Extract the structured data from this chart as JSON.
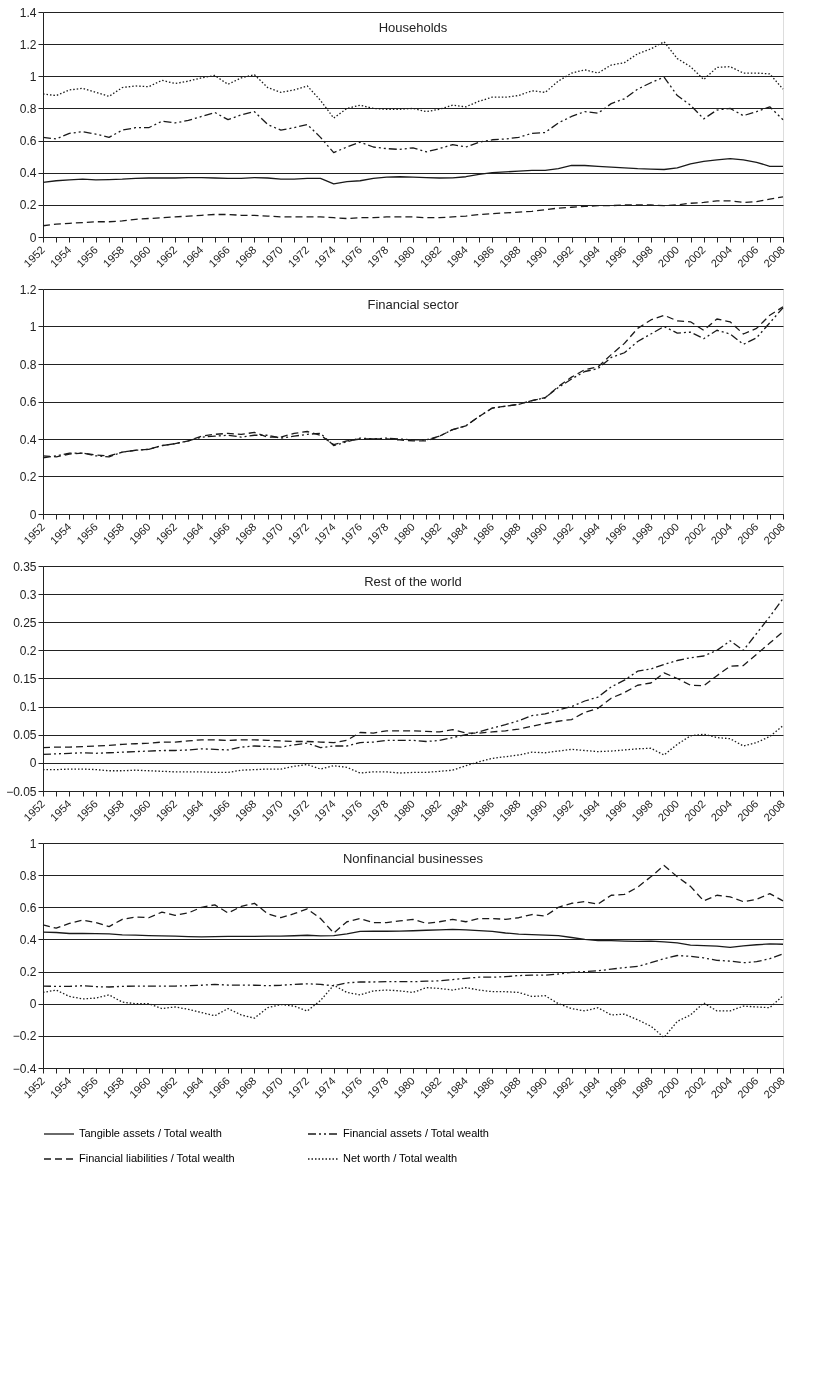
{
  "chart_data": [
    {
      "type": "line",
      "title": "Households",
      "categories": [
        "1952",
        null,
        "1954",
        null,
        "1956",
        null,
        "1958",
        null,
        "1960",
        null,
        "1962",
        null,
        "1964",
        null,
        "1966",
        null,
        "1968",
        null,
        "1970",
        null,
        "1972",
        null,
        "1974",
        null,
        "1976",
        null,
        "1978",
        null,
        "1980",
        null,
        "1982",
        null,
        "1984",
        null,
        "1986",
        null,
        "1988",
        null,
        "1990",
        null,
        "1992",
        null,
        "1994",
        null,
        "1996",
        null,
        "1998",
        null,
        "2000",
        null,
        "2002",
        null,
        "2004",
        null,
        "2006",
        null,
        "2008"
      ],
      "ylim": [
        0,
        1.4
      ],
      "yticks": [
        0,
        0.2,
        0.4,
        0.6,
        0.8,
        1,
        1.2,
        1.4
      ],
      "grid": "y",
      "legend": "bottom",
      "marker": "none",
      "series": [
        {
          "name": "Tangible assets / Total wealth",
          "color": "#1a1a1a",
          "line_style": "solid",
          "values": [
            0.34,
            0.35,
            0.355,
            0.36,
            0.355,
            0.357,
            0.36,
            0.365,
            0.367,
            0.368,
            0.367,
            0.37,
            0.37,
            0.367,
            0.365,
            0.365,
            0.37,
            0.367,
            0.36,
            0.36,
            0.365,
            0.365,
            0.33,
            0.345,
            0.35,
            0.365,
            0.372,
            0.375,
            0.373,
            0.37,
            0.367,
            0.368,
            0.375,
            0.39,
            0.4,
            0.405,
            0.41,
            0.415,
            0.415,
            0.425,
            0.445,
            0.445,
            0.44,
            0.435,
            0.43,
            0.425,
            0.422,
            0.42,
            0.43,
            0.455,
            0.47,
            0.48,
            0.488,
            0.48,
            0.465,
            0.44,
            0.44
          ]
        },
        {
          "name": "Financial assets / Total wealth",
          "color": "#1a1a1a",
          "line_style": "dashdot",
          "values": [
            0.62,
            0.61,
            0.645,
            0.655,
            0.64,
            0.62,
            0.665,
            0.68,
            0.68,
            0.72,
            0.71,
            0.725,
            0.75,
            0.775,
            0.73,
            0.76,
            0.78,
            0.7,
            0.665,
            0.68,
            0.7,
            0.62,
            0.525,
            0.56,
            0.59,
            0.56,
            0.55,
            0.545,
            0.555,
            0.53,
            0.55,
            0.575,
            0.56,
            0.59,
            0.605,
            0.61,
            0.62,
            0.645,
            0.65,
            0.71,
            0.75,
            0.78,
            0.77,
            0.83,
            0.86,
            0.92,
            0.96,
            0.995,
            0.88,
            0.82,
            0.735,
            0.79,
            0.8,
            0.755,
            0.78,
            0.81,
            0.73
          ]
        },
        {
          "name": "Financial liabilities / Total wealth",
          "color": "#1a1a1a",
          "line_style": "dashed",
          "values": [
            0.07,
            0.08,
            0.085,
            0.09,
            0.095,
            0.095,
            0.1,
            0.11,
            0.115,
            0.12,
            0.125,
            0.13,
            0.135,
            0.14,
            0.14,
            0.135,
            0.135,
            0.13,
            0.125,
            0.125,
            0.125,
            0.125,
            0.12,
            0.115,
            0.12,
            0.12,
            0.125,
            0.125,
            0.125,
            0.12,
            0.12,
            0.125,
            0.13,
            0.14,
            0.145,
            0.15,
            0.155,
            0.16,
            0.17,
            0.18,
            0.185,
            0.19,
            0.195,
            0.195,
            0.2,
            0.2,
            0.2,
            0.195,
            0.2,
            0.21,
            0.215,
            0.225,
            0.225,
            0.215,
            0.22,
            0.235,
            0.25
          ]
        },
        {
          "name": "Net worth / Total wealth",
          "color": "#1a1a1a",
          "line_style": "dotted",
          "values": [
            0.89,
            0.88,
            0.915,
            0.925,
            0.9,
            0.875,
            0.93,
            0.94,
            0.935,
            0.975,
            0.955,
            0.97,
            0.99,
            1.005,
            0.95,
            0.99,
            1.01,
            0.93,
            0.9,
            0.915,
            0.94,
            0.85,
            0.74,
            0.8,
            0.82,
            0.8,
            0.795,
            0.795,
            0.8,
            0.78,
            0.795,
            0.82,
            0.81,
            0.845,
            0.87,
            0.87,
            0.88,
            0.91,
            0.9,
            0.97,
            1.02,
            1.04,
            1.02,
            1.07,
            1.085,
            1.14,
            1.17,
            1.215,
            1.11,
            1.06,
            0.98,
            1.055,
            1.06,
            1.02,
            1.02,
            1.015,
            0.92
          ]
        }
      ]
    },
    {
      "type": "line",
      "title": "Financial sector",
      "categories": [
        "1952",
        null,
        "1954",
        null,
        "1956",
        null,
        "1958",
        null,
        "1960",
        null,
        "1962",
        null,
        "1964",
        null,
        "1966",
        null,
        "1968",
        null,
        "1970",
        null,
        "1972",
        null,
        "1974",
        null,
        "1976",
        null,
        "1978",
        null,
        "1980",
        null,
        "1982",
        null,
        "1984",
        null,
        "1986",
        null,
        "1988",
        null,
        "1990",
        null,
        "1992",
        null,
        "1994",
        null,
        "1996",
        null,
        "1998",
        null,
        "2000",
        null,
        "2002",
        null,
        "2004",
        null,
        "2006",
        null,
        "2008"
      ],
      "ylim": [
        0,
        1.2
      ],
      "yticks": [
        0,
        0.2,
        0.4,
        0.6,
        0.8,
        1,
        1.2
      ],
      "grid": "y",
      "marker": "none",
      "series": [
        {
          "name": "Financial assets / Total wealth",
          "color": "#1a1a1a",
          "line_style": "dashdot",
          "values": [
            0.3,
            0.31,
            0.325,
            0.325,
            0.31,
            0.305,
            0.33,
            0.34,
            0.345,
            0.365,
            0.375,
            0.39,
            0.41,
            0.415,
            0.42,
            0.41,
            0.42,
            0.42,
            0.405,
            0.415,
            0.425,
            0.43,
            0.365,
            0.385,
            0.405,
            0.4,
            0.405,
            0.4,
            0.395,
            0.395,
            0.415,
            0.45,
            0.47,
            0.52,
            0.565,
            0.575,
            0.585,
            0.605,
            0.62,
            0.675,
            0.72,
            0.76,
            0.775,
            0.835,
            0.86,
            0.92,
            0.96,
            1.0,
            0.965,
            0.97,
            0.935,
            0.98,
            0.96,
            0.905,
            0.94,
            1.02,
            1.1
          ]
        },
        {
          "name": "Financial liabilities / Total wealth",
          "color": "#1a1a1a",
          "line_style": "dashed",
          "values": [
            0.31,
            0.305,
            0.32,
            0.325,
            0.315,
            0.31,
            0.33,
            0.34,
            0.345,
            0.365,
            0.375,
            0.39,
            0.415,
            0.425,
            0.43,
            0.425,
            0.435,
            0.41,
            0.41,
            0.43,
            0.44,
            0.42,
            0.37,
            0.39,
            0.4,
            0.4,
            0.4,
            0.395,
            0.39,
            0.39,
            0.415,
            0.45,
            0.47,
            0.52,
            0.565,
            0.575,
            0.585,
            0.605,
            0.62,
            0.68,
            0.73,
            0.77,
            0.785,
            0.85,
            0.91,
            0.99,
            1.035,
            1.06,
            1.03,
            1.025,
            0.98,
            1.04,
            1.025,
            0.96,
            0.99,
            1.06,
            1.105
          ]
        }
      ]
    },
    {
      "type": "line",
      "title": "Rest of the world",
      "categories": [
        "1952",
        null,
        "1954",
        null,
        "1956",
        null,
        "1958",
        null,
        "1960",
        null,
        "1962",
        null,
        "1964",
        null,
        "1966",
        null,
        "1968",
        null,
        "1970",
        null,
        "1972",
        null,
        "1974",
        null,
        "1976",
        null,
        "1978",
        null,
        "1980",
        null,
        "1982",
        null,
        "1984",
        null,
        "1986",
        null,
        "1988",
        null,
        "1990",
        null,
        "1992",
        null,
        "1994",
        null,
        "1996",
        null,
        "1998",
        null,
        "2000",
        null,
        "2002",
        null,
        "2004",
        null,
        "2006",
        null,
        "2008"
      ],
      "ylim": [
        -0.05,
        0.35
      ],
      "yticks": [
        -0.05,
        0,
        0.05,
        0.1,
        0.15,
        0.2,
        0.25,
        0.3,
        0.35
      ],
      "grid": "y",
      "marker": "none",
      "series": [
        {
          "name": "Financial assets / Total wealth",
          "color": "#1a1a1a",
          "line_style": "dashdot",
          "values": [
            0.015,
            0.016,
            0.017,
            0.018,
            0.017,
            0.018,
            0.019,
            0.02,
            0.021,
            0.022,
            0.022,
            0.023,
            0.025,
            0.024,
            0.023,
            0.028,
            0.03,
            0.029,
            0.028,
            0.032,
            0.035,
            0.027,
            0.03,
            0.03,
            0.036,
            0.037,
            0.04,
            0.04,
            0.04,
            0.038,
            0.04,
            0.045,
            0.05,
            0.055,
            0.062,
            0.068,
            0.075,
            0.084,
            0.087,
            0.094,
            0.1,
            0.11,
            0.117,
            0.135,
            0.147,
            0.163,
            0.167,
            0.175,
            0.182,
            0.187,
            0.19,
            0.2,
            0.217,
            0.2,
            0.23,
            0.26,
            0.292
          ]
        },
        {
          "name": "Financial liabilities / Total wealth",
          "color": "#1a1a1a",
          "line_style": "dashed",
          "values": [
            0.027,
            0.028,
            0.028,
            0.029,
            0.03,
            0.031,
            0.033,
            0.034,
            0.035,
            0.037,
            0.037,
            0.039,
            0.041,
            0.041,
            0.04,
            0.041,
            0.041,
            0.04,
            0.039,
            0.038,
            0.038,
            0.037,
            0.036,
            0.04,
            0.054,
            0.053,
            0.057,
            0.057,
            0.057,
            0.056,
            0.055,
            0.059,
            0.053,
            0.053,
            0.055,
            0.057,
            0.06,
            0.065,
            0.07,
            0.074,
            0.077,
            0.09,
            0.097,
            0.115,
            0.125,
            0.138,
            0.142,
            0.16,
            0.15,
            0.138,
            0.137,
            0.155,
            0.172,
            0.173,
            0.193,
            0.213,
            0.233
          ]
        },
        {
          "name": "Net worth / Total wealth",
          "color": "#1a1a1a",
          "line_style": "dotted",
          "values": [
            -0.012,
            -0.012,
            -0.011,
            -0.011,
            -0.012,
            -0.014,
            -0.014,
            -0.013,
            -0.014,
            -0.015,
            -0.016,
            -0.016,
            -0.016,
            -0.017,
            -0.017,
            -0.013,
            -0.012,
            -0.011,
            -0.011,
            -0.006,
            -0.003,
            -0.011,
            -0.005,
            -0.008,
            -0.018,
            -0.016,
            -0.016,
            -0.018,
            -0.017,
            -0.017,
            -0.015,
            -0.013,
            -0.005,
            0.002,
            0.008,
            0.011,
            0.014,
            0.019,
            0.018,
            0.021,
            0.024,
            0.022,
            0.02,
            0.021,
            0.023,
            0.025,
            0.026,
            0.014,
            0.033,
            0.048,
            0.051,
            0.045,
            0.043,
            0.03,
            0.036,
            0.047,
            0.066
          ]
        }
      ]
    },
    {
      "type": "line",
      "title": "Nonfinancial businesses",
      "categories": [
        "1952",
        null,
        "1954",
        null,
        "1956",
        null,
        "1958",
        null,
        "1960",
        null,
        "1962",
        null,
        "1964",
        null,
        "1966",
        null,
        "1968",
        null,
        "1970",
        null,
        "1972",
        null,
        "1974",
        null,
        "1976",
        null,
        "1978",
        null,
        "1980",
        null,
        "1982",
        null,
        "1984",
        null,
        "1986",
        null,
        "1988",
        null,
        "1990",
        null,
        "1992",
        null,
        "1994",
        null,
        "1996",
        null,
        "1998",
        null,
        "2000",
        null,
        "2002",
        null,
        "2004",
        null,
        "2006",
        null,
        "2008"
      ],
      "ylim": [
        -0.4,
        1
      ],
      "yticks": [
        -0.4,
        -0.2,
        0,
        0.2,
        0.4,
        0.6,
        0.8,
        1
      ],
      "grid": "y",
      "marker": "none",
      "series": [
        {
          "name": "Tangible assets / Total wealth",
          "color": "#1a1a1a",
          "line_style": "solid",
          "values": [
            0.445,
            0.443,
            0.437,
            0.437,
            0.436,
            0.434,
            0.428,
            0.427,
            0.424,
            0.422,
            0.42,
            0.418,
            0.416,
            0.418,
            0.419,
            0.419,
            0.419,
            0.42,
            0.421,
            0.423,
            0.426,
            0.422,
            0.424,
            0.435,
            0.45,
            0.452,
            0.451,
            0.452,
            0.454,
            0.457,
            0.46,
            0.462,
            0.46,
            0.455,
            0.45,
            0.44,
            0.433,
            0.43,
            0.427,
            0.424,
            0.412,
            0.4,
            0.392,
            0.392,
            0.39,
            0.388,
            0.39,
            0.385,
            0.378,
            0.365,
            0.362,
            0.358,
            0.35,
            0.36,
            0.367,
            0.372,
            0.37
          ]
        },
        {
          "name": "Financial assets / Total wealth",
          "color": "#1a1a1a",
          "line_style": "dashdot",
          "values": [
            0.11,
            0.108,
            0.108,
            0.112,
            0.106,
            0.104,
            0.108,
            0.11,
            0.11,
            0.11,
            0.11,
            0.112,
            0.115,
            0.12,
            0.116,
            0.116,
            0.115,
            0.112,
            0.115,
            0.12,
            0.124,
            0.12,
            0.112,
            0.13,
            0.135,
            0.135,
            0.138,
            0.138,
            0.137,
            0.14,
            0.142,
            0.15,
            0.158,
            0.165,
            0.165,
            0.168,
            0.175,
            0.178,
            0.178,
            0.185,
            0.195,
            0.2,
            0.205,
            0.215,
            0.225,
            0.232,
            0.255,
            0.28,
            0.3,
            0.295,
            0.285,
            0.27,
            0.265,
            0.255,
            0.262,
            0.28,
            0.31
          ]
        },
        {
          "name": "Financial liabilities / Total wealth",
          "color": "#1a1a1a",
          "line_style": "dashed",
          "values": [
            0.49,
            0.47,
            0.5,
            0.52,
            0.505,
            0.48,
            0.525,
            0.54,
            0.535,
            0.57,
            0.55,
            0.565,
            0.6,
            0.615,
            0.565,
            0.605,
            0.625,
            0.56,
            0.535,
            0.56,
            0.59,
            0.53,
            0.44,
            0.51,
            0.53,
            0.505,
            0.505,
            0.515,
            0.525,
            0.5,
            0.51,
            0.525,
            0.51,
            0.53,
            0.53,
            0.525,
            0.535,
            0.555,
            0.545,
            0.6,
            0.625,
            0.635,
            0.62,
            0.675,
            0.68,
            0.725,
            0.79,
            0.86,
            0.79,
            0.73,
            0.64,
            0.675,
            0.665,
            0.635,
            0.65,
            0.685,
            0.64
          ]
        },
        {
          "name": "Net worth / Total wealth",
          "color": "#1a1a1a",
          "line_style": "dotted",
          "values": [
            0.07,
            0.085,
            0.045,
            0.03,
            0.035,
            0.055,
            0.01,
            0,
            0,
            -0.03,
            -0.02,
            -0.035,
            -0.055,
            -0.075,
            -0.03,
            -0.07,
            -0.09,
            -0.025,
            -0.005,
            -0.015,
            -0.045,
            0.02,
            0.115,
            0.07,
            0.055,
            0.08,
            0.085,
            0.08,
            0.07,
            0.1,
            0.095,
            0.085,
            0.1,
            0.085,
            0.075,
            0.075,
            0.07,
            0.045,
            0.05,
            0,
            -0.03,
            -0.045,
            -0.025,
            -0.07,
            -0.065,
            -0.1,
            -0.14,
            -0.21,
            -0.11,
            -0.07,
            0.005,
            -0.045,
            -0.045,
            -0.015,
            -0.02,
            -0.025,
            0.05
          ]
        }
      ]
    }
  ]
}
